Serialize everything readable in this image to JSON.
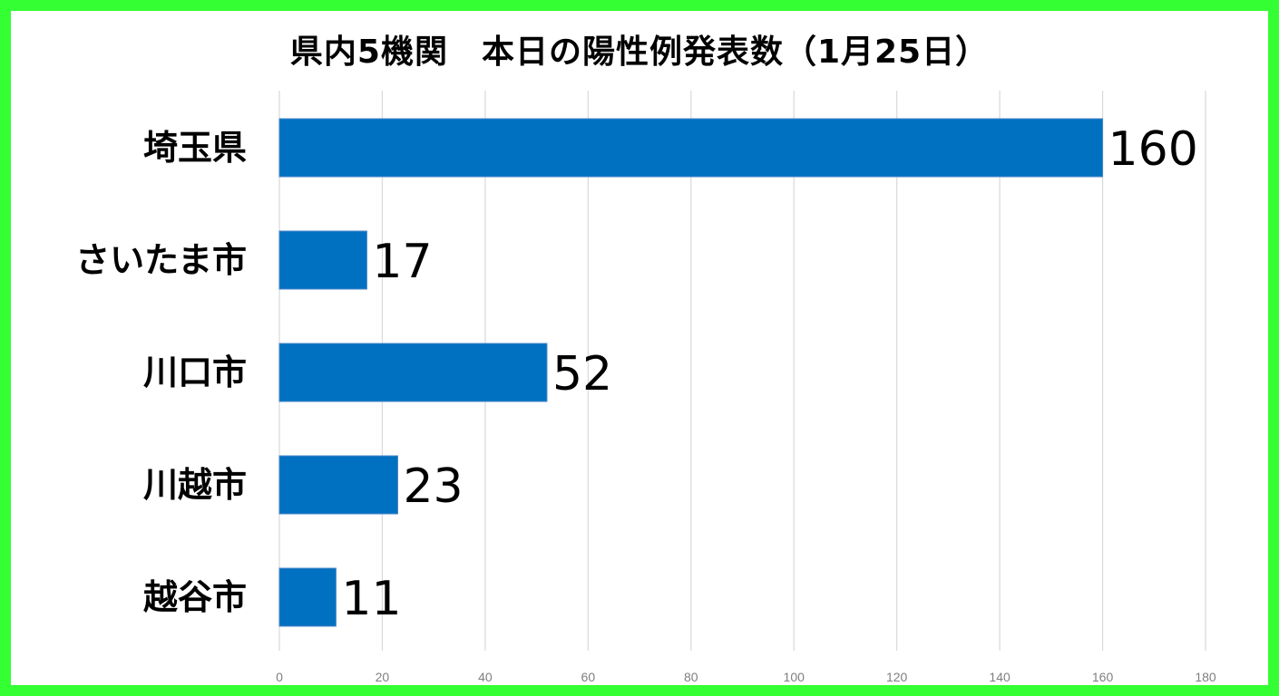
{
  "chart_data": {
    "type": "bar",
    "orientation": "horizontal",
    "title": "県内5機関　本日の陽性例発表数（1月25日）",
    "categories": [
      "埼玉県",
      "さいたま市",
      "川口市",
      "川越市",
      "越谷市"
    ],
    "values": [
      160,
      17,
      52,
      23,
      11
    ],
    "xlim": [
      0,
      180
    ],
    "ticks": [
      0,
      20,
      40,
      60,
      80,
      100,
      120,
      140,
      160,
      180
    ],
    "xlabel": "",
    "ylabel": "",
    "grid": true,
    "legend": "none",
    "bar_color": "#0070c0",
    "frame_color": "#33ff33"
  }
}
